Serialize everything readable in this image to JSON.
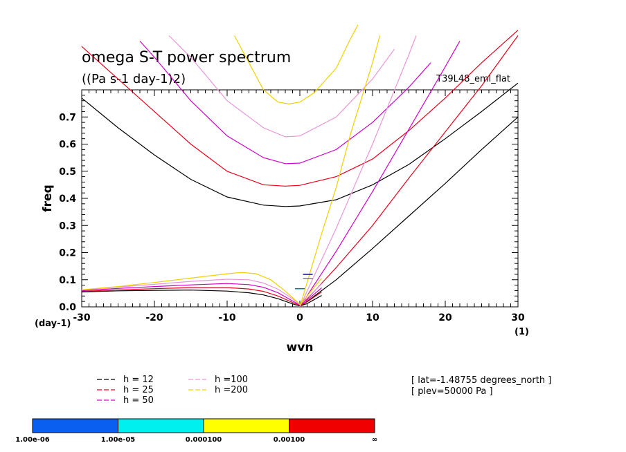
{
  "chart_data": {
    "type": "line",
    "title": "omega S-T power spectrum",
    "subtitle": "((Pa s-1 day-1)2)",
    "experiment": "T39L48_eml_flat",
    "xlabel": "wvn",
    "ylabel": "freq",
    "x_unit": "(1)",
    "y_unit": "(day-1)",
    "xlim": [
      -30,
      30
    ],
    "ylim": [
      0,
      0.8
    ],
    "x_ticks": [
      -30,
      -20,
      -10,
      0,
      10,
      20,
      30
    ],
    "x_tick_labels": [
      "-30",
      "-20",
      "-10",
      "0",
      "10",
      "20",
      "30"
    ],
    "y_ticks": [
      0,
      0.1,
      0.2,
      0.3,
      0.4,
      0.5,
      0.6,
      0.7
    ],
    "y_tick_labels": [
      "0.0",
      "0.1",
      "0.2",
      "0.3",
      "0.4",
      "0.5",
      "0.6",
      "0.7"
    ],
    "legend": [
      {
        "label": "h = 12",
        "color": "#000000"
      },
      {
        "label": "h = 25",
        "color": "#e8001a"
      },
      {
        "label": "h = 50",
        "color": "#d000c8"
      },
      {
        "label": "h =100",
        "color": "#e896d8"
      },
      {
        "label": "h =200",
        "color": "#f0d000"
      }
    ],
    "info": [
      "[ lat=-1.48755 degrees_north ]",
      "[ plev=50000 Pa ]"
    ],
    "colorbar": {
      "colors": [
        "#0a5ef0",
        "#00f0f0",
        "#ffff00",
        "#f00000"
      ],
      "labels": [
        "1.00e-06",
        "1.00e-05",
        "0.000100",
        "0.00100",
        "∞"
      ]
    },
    "series": [
      {
        "name": "h = 12",
        "color": "#000000",
        "ig1": [
          [
            -30,
            0.77
          ],
          [
            -25,
            0.66
          ],
          [
            -20,
            0.56
          ],
          [
            -15,
            0.47
          ],
          [
            -10,
            0.405
          ],
          [
            -5,
            0.375
          ],
          [
            -2,
            0.37
          ],
          [
            0,
            0.372
          ],
          [
            5,
            0.395
          ],
          [
            10,
            0.45
          ],
          [
            15,
            0.525
          ],
          [
            20,
            0.62
          ],
          [
            25,
            0.72
          ],
          [
            30,
            0.825
          ]
        ],
        "kelvin": [
          [
            0,
            0
          ],
          [
            5,
            0.1
          ],
          [
            10,
            0.215
          ],
          [
            15,
            0.335
          ],
          [
            20,
            0.455
          ],
          [
            25,
            0.58
          ],
          [
            30,
            0.7
          ]
        ],
        "mrg": [
          [
            -30,
            0.055
          ],
          [
            -25,
            0.059
          ],
          [
            -20,
            0.061
          ],
          [
            -15,
            0.062
          ],
          [
            -10,
            0.058
          ],
          [
            -7,
            0.052
          ],
          [
            -5,
            0.044
          ],
          [
            -3,
            0.03
          ],
          [
            -1,
            0.011
          ],
          [
            0,
            0.003
          ],
          [
            1,
            0.012
          ],
          [
            3,
            0.042
          ]
        ]
      },
      {
        "name": "h = 25",
        "color": "#e8001a",
        "ig1": [
          [
            -30,
            0.96
          ],
          [
            -25,
            0.84
          ],
          [
            -20,
            0.72
          ],
          [
            -15,
            0.6
          ],
          [
            -10,
            0.5
          ],
          [
            -5,
            0.45
          ],
          [
            -2,
            0.445
          ],
          [
            0,
            0.448
          ],
          [
            5,
            0.48
          ],
          [
            10,
            0.545
          ],
          [
            15,
            0.65
          ],
          [
            20,
            0.77
          ],
          [
            25,
            0.9
          ],
          [
            30,
            1.02
          ]
        ],
        "kelvin": [
          [
            0,
            0
          ],
          [
            5,
            0.145
          ],
          [
            10,
            0.3
          ],
          [
            15,
            0.475
          ],
          [
            20,
            0.645
          ],
          [
            25,
            0.815
          ],
          [
            30,
            1.0
          ]
        ],
        "mrg": [
          [
            -30,
            0.057
          ],
          [
            -25,
            0.063
          ],
          [
            -20,
            0.067
          ],
          [
            -15,
            0.071
          ],
          [
            -10,
            0.071
          ],
          [
            -7,
            0.066
          ],
          [
            -5,
            0.057
          ],
          [
            -3,
            0.04
          ],
          [
            -1,
            0.016
          ],
          [
            0,
            0.005
          ],
          [
            1,
            0.018
          ],
          [
            3,
            0.055
          ]
        ]
      },
      {
        "name": "h = 50",
        "color": "#d000c8",
        "ig1": [
          [
            -22,
            0.98
          ],
          [
            -20,
            0.92
          ],
          [
            -15,
            0.76
          ],
          [
            -10,
            0.63
          ],
          [
            -5,
            0.55
          ],
          [
            -2,
            0.528
          ],
          [
            0,
            0.53
          ],
          [
            5,
            0.58
          ],
          [
            10,
            0.68
          ],
          [
            15,
            0.81
          ],
          [
            18,
            0.9
          ]
        ],
        "kelvin": [
          [
            0,
            0
          ],
          [
            5,
            0.205
          ],
          [
            10,
            0.425
          ],
          [
            15,
            0.655
          ],
          [
            20,
            0.885
          ],
          [
            22,
            0.98
          ]
        ],
        "mrg": [
          [
            -30,
            0.06
          ],
          [
            -25,
            0.068
          ],
          [
            -20,
            0.075
          ],
          [
            -15,
            0.081
          ],
          [
            -10,
            0.086
          ],
          [
            -7,
            0.082
          ],
          [
            -5,
            0.072
          ],
          [
            -3,
            0.052
          ],
          [
            -1,
            0.022
          ],
          [
            0,
            0.006
          ],
          [
            1,
            0.025
          ],
          [
            3,
            0.07
          ]
        ]
      },
      {
        "name": "h =100",
        "color": "#e896d8",
        "ig1": [
          [
            -18,
            1.0
          ],
          [
            -15,
            0.92
          ],
          [
            -10,
            0.76
          ],
          [
            -5,
            0.66
          ],
          [
            -2,
            0.627
          ],
          [
            0,
            0.63
          ],
          [
            5,
            0.7
          ],
          [
            10,
            0.84
          ],
          [
            13,
            0.95
          ]
        ],
        "kelvin": [
          [
            0,
            0
          ],
          [
            5,
            0.29
          ],
          [
            10,
            0.6
          ],
          [
            15,
            0.93
          ],
          [
            16,
            1.0
          ]
        ],
        "mrg": [
          [
            -30,
            0.062
          ],
          [
            -25,
            0.073
          ],
          [
            -20,
            0.083
          ],
          [
            -15,
            0.094
          ],
          [
            -10,
            0.102
          ],
          [
            -7,
            0.1
          ],
          [
            -5,
            0.088
          ],
          [
            -3,
            0.065
          ],
          [
            -1,
            0.03
          ],
          [
            0,
            0.008
          ],
          [
            1,
            0.032
          ],
          [
            3,
            0.085
          ]
        ]
      },
      {
        "name": "h =200",
        "color": "#f0d000",
        "ig1": [
          [
            -9,
            1.0
          ],
          [
            -7,
            0.9
          ],
          [
            -5,
            0.8
          ],
          [
            -3,
            0.755
          ],
          [
            -1.5,
            0.748
          ],
          [
            0,
            0.755
          ],
          [
            2,
            0.79
          ],
          [
            5,
            0.88
          ],
          [
            7,
            0.99
          ],
          [
            8,
            1.04
          ]
        ],
        "kelvin": [
          [
            0,
            0
          ],
          [
            3,
            0.27
          ],
          [
            5,
            0.44
          ],
          [
            7,
            0.64
          ],
          [
            10,
            0.9
          ],
          [
            11,
            1.0
          ]
        ],
        "mrg": [
          [
            -30,
            0.063
          ],
          [
            -25,
            0.075
          ],
          [
            -20,
            0.09
          ],
          [
            -15,
            0.106
          ],
          [
            -10,
            0.122
          ],
          [
            -8,
            0.127
          ],
          [
            -6,
            0.122
          ],
          [
            -4,
            0.1
          ],
          [
            -2,
            0.058
          ],
          [
            0,
            0.01
          ],
          [
            1,
            0.04
          ],
          [
            3,
            0.105
          ]
        ]
      }
    ],
    "markers": [
      {
        "x": 0,
        "y": 0.067,
        "color": "#008080"
      },
      {
        "x": 1.1,
        "y": 0.105,
        "color": "#808080"
      },
      {
        "x": 1.1,
        "y": 0.12,
        "color": "#000080"
      }
    ]
  }
}
